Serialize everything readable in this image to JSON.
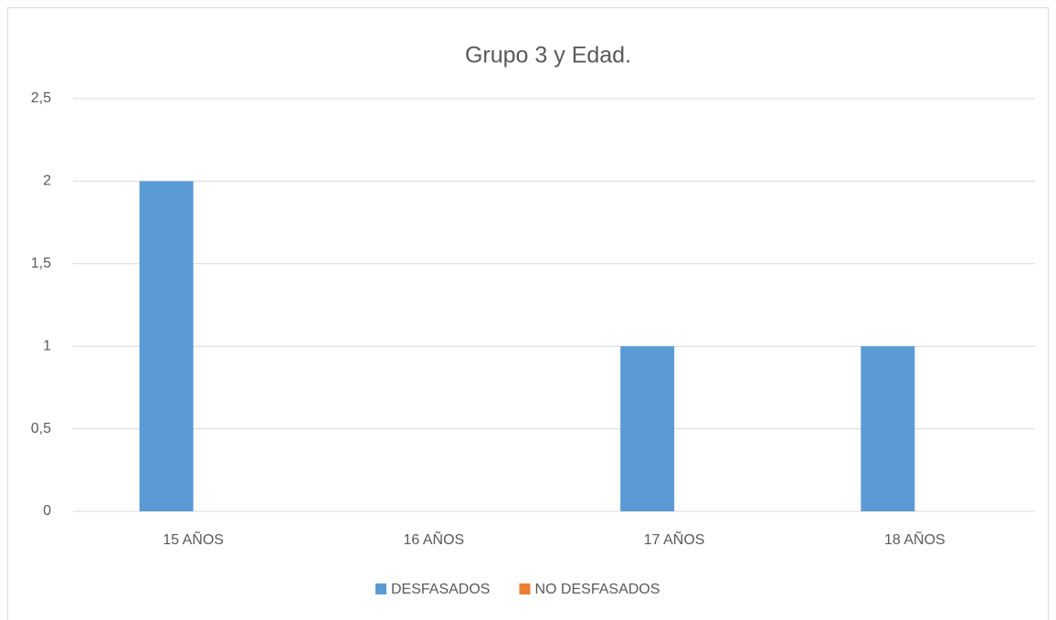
{
  "chart_data": {
    "type": "bar",
    "title": "Grupo 3 y Edad.",
    "categories": [
      "15 AÑOS",
      "16 AÑOS",
      "17 AÑOS",
      "18 AÑOS"
    ],
    "series": [
      {
        "name": "DESFASADOS",
        "color": "#5b9bd5",
        "values": [
          2,
          0,
          1,
          1
        ]
      },
      {
        "name": "NO DESFASADOS",
        "color": "#ed7d31",
        "values": [
          0,
          0,
          0,
          0
        ]
      }
    ],
    "ylim": [
      0,
      2.5
    ],
    "yticks": [
      0,
      {
        "value": 0.5,
        "label": "0,5"
      },
      1,
      {
        "value": 1.5,
        "label": "1,5"
      },
      2,
      {
        "value": 2.5,
        "label": "2,5"
      }
    ],
    "grid": true,
    "legend": "bottom"
  }
}
